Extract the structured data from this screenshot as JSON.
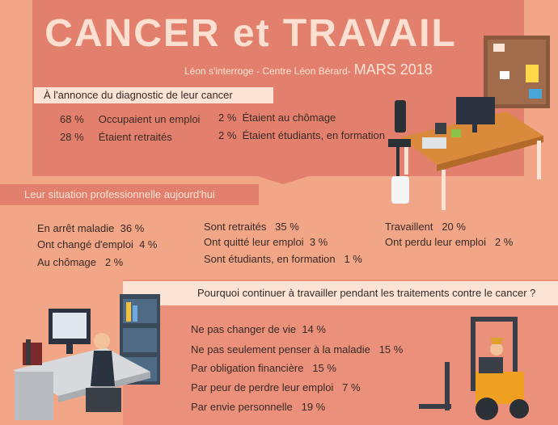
{
  "header": {
    "title": "CANCER et TRAVAIL",
    "subtitle": "Léon s'interroge - Centre Léon Bérard-",
    "date": "MARS 2018"
  },
  "diagnosis": {
    "label": "À l'annonce du diagnostic de leur cancer",
    "items": [
      {
        "value": "68 %",
        "label": "Occupaient un emploi"
      },
      {
        "value": "28 %",
        "label": "Étaient retraités"
      },
      {
        "value": "2 %",
        "label": "Étaient au chômage"
      },
      {
        "value": "2 %",
        "label": "Étaient étudiants, en formation"
      }
    ]
  },
  "current": {
    "label": "Leur situation professionnelle aujourd'hui",
    "items": [
      {
        "label": "En arrêt maladie",
        "value": "36 %"
      },
      {
        "label": "Ont changé d'emploi",
        "value": "4 %"
      },
      {
        "label": "Au chômage",
        "value": "2 %"
      },
      {
        "label": "Sont retraités",
        "value": "35 %"
      },
      {
        "label": "Ont quitté leur emploi",
        "value": "3 %"
      },
      {
        "label": "Sont étudiants, en formation",
        "value": "1 %"
      },
      {
        "label": "Travaillent",
        "value": "20 %"
      },
      {
        "label": "Ont perdu leur emploi",
        "value": "2 %"
      }
    ]
  },
  "reasons": {
    "question": "Pourquoi continuer à travailler pendant les traitements contre le cancer ?",
    "items": [
      {
        "label": "Ne pas changer de vie",
        "value": "14 %"
      },
      {
        "label": "Ne pas seulement penser à la maladie",
        "value": "15 %"
      },
      {
        "label": "Par obligation financière",
        "value": "15 %"
      },
      {
        "label": "Par peur de perdre leur emploi",
        "value": "7 %"
      },
      {
        "label": "Par envie personnelle",
        "value": "19 %"
      }
    ]
  },
  "colors": {
    "background": "#f1a687",
    "banner": "#e3806d",
    "label_bg": "#fbe3d6",
    "title": "#fbe0d2"
  }
}
